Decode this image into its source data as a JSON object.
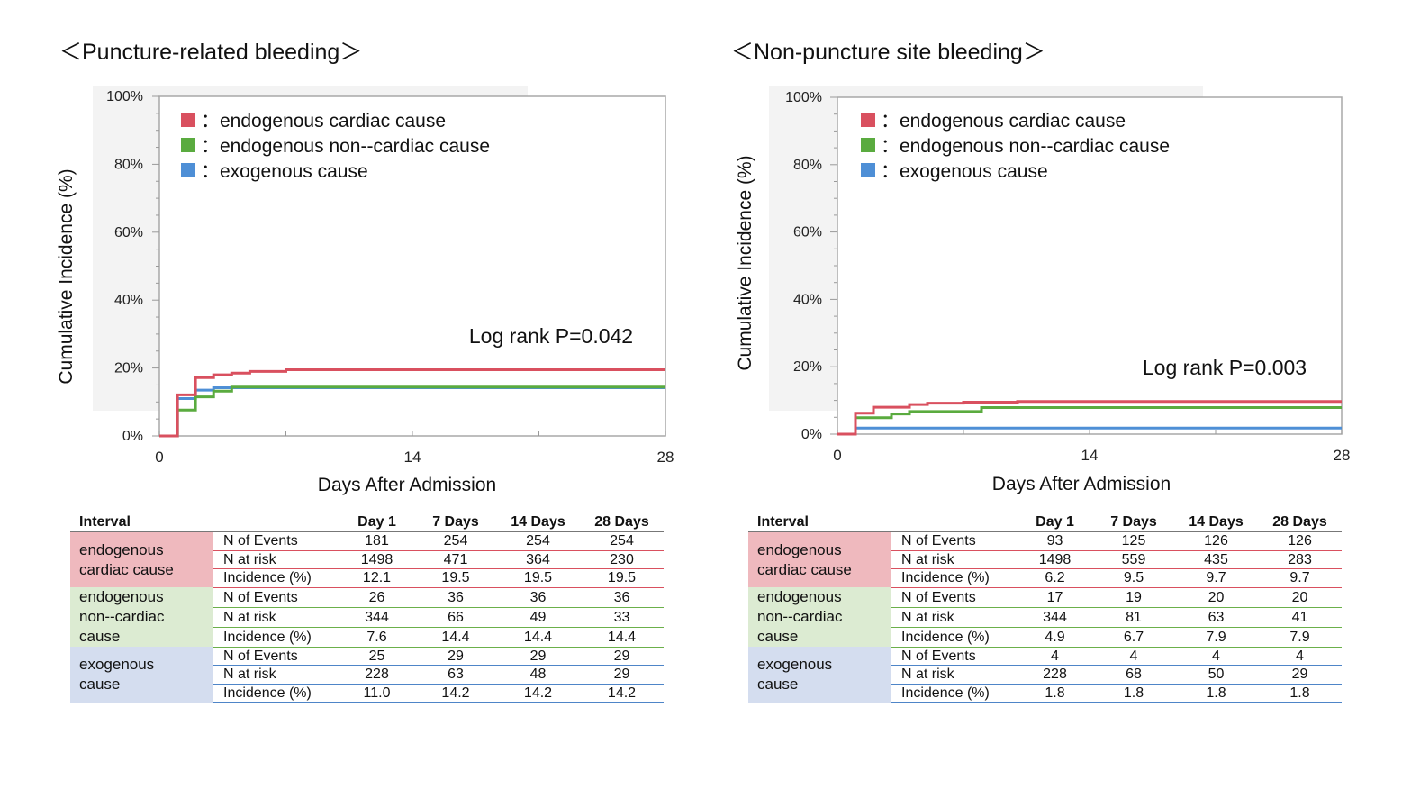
{
  "colors": {
    "endogenous_cardiac": "#d9505f",
    "endogenous_noncardiac": "#5aab3f",
    "exogenous": "#4e8fd6"
  },
  "legend": [
    {
      "key": "endogenous_cardiac",
      "label": "：endogenous cardiac cause"
    },
    {
      "key": "endogenous_noncardiac",
      "label": "：endogenous non--cardiac cause"
    },
    {
      "key": "exogenous",
      "label": "：exogenous cause"
    }
  ],
  "table_header": [
    "Interval",
    "Day 1",
    "7 Days",
    "14 Days",
    "28 Days"
  ],
  "metric_labels": [
    "N of Events",
    "N at risk",
    "Incidence (%)"
  ],
  "panels": [
    {
      "title": "＜Puncture-related bleeding＞",
      "logrank": "Log rank P=0.042",
      "ylabel": "Cumulative Incidence (%)",
      "xlabel": "Days After Admission",
      "groups": [
        {
          "name_lines": [
            "endogenous",
            "cardiac cause"
          ],
          "rows": [
            [
              "181",
              "254",
              "254",
              "254"
            ],
            [
              "1498",
              "471",
              "364",
              "230"
            ],
            [
              "12.1",
              "19.5",
              "19.5",
              "19.5"
            ]
          ]
        },
        {
          "name_lines": [
            "endogenous",
            "non--cardiac",
            "cause"
          ],
          "rows": [
            [
              "26",
              "36",
              "36",
              "36"
            ],
            [
              "344",
              "66",
              "49",
              "33"
            ],
            [
              "7.6",
              "14.4",
              "14.4",
              "14.4"
            ]
          ]
        },
        {
          "name_lines": [
            "exogenous",
            "cause"
          ],
          "rows": [
            [
              "25",
              "29",
              "29",
              "29"
            ],
            [
              "228",
              "63",
              "48",
              "29"
            ],
            [
              "11.0",
              "14.2",
              "14.2",
              "14.2"
            ]
          ]
        }
      ]
    },
    {
      "title": "＜Non-puncture site bleeding＞",
      "logrank": "Log rank P=0.003",
      "ylabel": "Cumulative Incidence (%)",
      "xlabel": "Days After Admission",
      "groups": [
        {
          "name_lines": [
            "endogenous",
            "cardiac cause"
          ],
          "rows": [
            [
              "93",
              "125",
              "126",
              "126"
            ],
            [
              "1498",
              "559",
              "435",
              "283"
            ],
            [
              "6.2",
              "9.5",
              "9.7",
              "9.7"
            ]
          ]
        },
        {
          "name_lines": [
            "endogenous",
            "non--cardiac",
            "cause"
          ],
          "rows": [
            [
              "17",
              "19",
              "20",
              "20"
            ],
            [
              "344",
              "81",
              "63",
              "41"
            ],
            [
              "4.9",
              "6.7",
              "7.9",
              "7.9"
            ]
          ]
        },
        {
          "name_lines": [
            "exogenous",
            "cause"
          ],
          "rows": [
            [
              "4",
              "4",
              "4",
              "4"
            ],
            [
              "228",
              "68",
              "50",
              "29"
            ],
            [
              "1.8",
              "1.8",
              "1.8",
              "1.8"
            ]
          ]
        }
      ]
    }
  ],
  "chart_data": [
    {
      "type": "line",
      "step": true,
      "title": "＜Puncture-related bleeding＞",
      "xlabel": "Days After Admission",
      "ylabel": "Cumulative Incidence (%)",
      "xlim": [
        0,
        28
      ],
      "ylim": [
        0,
        100
      ],
      "x_ticks": [
        0,
        14,
        28
      ],
      "y_ticks": [
        "0%",
        "20%",
        "40%",
        "60%",
        "80%",
        "100%"
      ],
      "annotation": "Log rank P=0.042",
      "legend_position": "top-left",
      "series": [
        {
          "name": "endogenous cardiac cause",
          "color_key": "endogenous_cardiac",
          "points": [
            [
              0,
              0
            ],
            [
              1,
              0
            ],
            [
              1,
              12.1
            ],
            [
              2,
              12.1
            ],
            [
              2,
              17.2
            ],
            [
              3,
              17.2
            ],
            [
              3,
              18.0
            ],
            [
              4,
              18.0
            ],
            [
              4,
              18.5
            ],
            [
              5,
              18.5
            ],
            [
              5,
              19.0
            ],
            [
              7,
              19.0
            ],
            [
              7,
              19.5
            ],
            [
              28,
              19.5
            ]
          ]
        },
        {
          "name": "endogenous non--cardiac cause",
          "color_key": "endogenous_noncardiac",
          "points": [
            [
              0,
              0
            ],
            [
              1,
              0
            ],
            [
              1,
              7.6
            ],
            [
              2,
              7.6
            ],
            [
              2,
              11.5
            ],
            [
              3,
              11.5
            ],
            [
              3,
              13.2
            ],
            [
              4,
              13.2
            ],
            [
              4,
              14.4
            ],
            [
              28,
              14.4
            ]
          ]
        },
        {
          "name": "exogenous cause",
          "color_key": "exogenous",
          "points": [
            [
              0,
              0
            ],
            [
              1,
              0
            ],
            [
              1,
              11.0
            ],
            [
              2,
              11.0
            ],
            [
              2,
              13.5
            ],
            [
              3,
              13.5
            ],
            [
              3,
              14.2
            ],
            [
              28,
              14.2
            ]
          ]
        }
      ]
    },
    {
      "type": "line",
      "step": true,
      "title": "＜Non-puncture site bleeding＞",
      "xlabel": "Days After Admission",
      "ylabel": "Cumulative Incidence (%)",
      "xlim": [
        0,
        28
      ],
      "ylim": [
        0,
        100
      ],
      "x_ticks": [
        0,
        14,
        28
      ],
      "y_ticks": [
        "0%",
        "20%",
        "40%",
        "60%",
        "80%",
        "100%"
      ],
      "annotation": "Log rank P=0.003",
      "legend_position": "top-left",
      "series": [
        {
          "name": "endogenous cardiac cause",
          "color_key": "endogenous_cardiac",
          "points": [
            [
              0,
              0
            ],
            [
              1,
              0
            ],
            [
              1,
              6.2
            ],
            [
              2,
              6.2
            ],
            [
              2,
              8.0
            ],
            [
              4,
              8.0
            ],
            [
              4,
              8.8
            ],
            [
              5,
              8.8
            ],
            [
              5,
              9.2
            ],
            [
              7,
              9.2
            ],
            [
              7,
              9.5
            ],
            [
              10,
              9.5
            ],
            [
              10,
              9.7
            ],
            [
              28,
              9.7
            ]
          ]
        },
        {
          "name": "endogenous non--cardiac cause",
          "color_key": "endogenous_noncardiac",
          "points": [
            [
              0,
              0
            ],
            [
              1,
              0
            ],
            [
              1,
              4.9
            ],
            [
              3,
              4.9
            ],
            [
              3,
              6.0
            ],
            [
              4,
              6.0
            ],
            [
              4,
              6.7
            ],
            [
              8,
              6.7
            ],
            [
              8,
              7.9
            ],
            [
              28,
              7.9
            ]
          ]
        },
        {
          "name": "exogenous cause",
          "color_key": "exogenous",
          "points": [
            [
              0,
              0
            ],
            [
              1,
              0
            ],
            [
              1,
              1.8
            ],
            [
              28,
              1.8
            ]
          ]
        }
      ]
    }
  ]
}
